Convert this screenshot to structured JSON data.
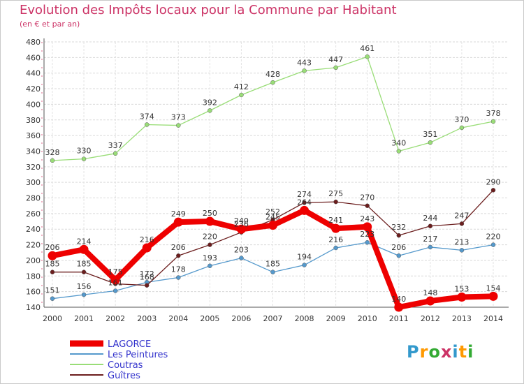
{
  "title": "Evolution des Impôts locaux pour la Commune par Habitant",
  "subtitle": "(en € et par an)",
  "logo": {
    "text": "Proxiti",
    "colors": [
      "#3399cc",
      "#ff9900",
      "#33aa33",
      "#cc3366",
      "#3399cc",
      "#ff9900",
      "#33aa33"
    ]
  },
  "chart_data": {
    "type": "line",
    "x": [
      "2000",
      "2001",
      "2002",
      "2003",
      "2004",
      "2005",
      "2006",
      "2007",
      "2008",
      "2009",
      "2010",
      "2011",
      "2012",
      "2013",
      "2014"
    ],
    "ylim": [
      140,
      480
    ],
    "yticks": [
      140,
      160,
      180,
      200,
      220,
      240,
      260,
      280,
      300,
      320,
      340,
      360,
      380,
      400,
      420,
      440,
      460,
      480
    ],
    "grid": true,
    "legend": "bottom-left",
    "series": [
      {
        "name": "LAGORCE",
        "color": "#ee0000",
        "values": [
          206,
          214,
          175,
          216,
          249,
          250,
          240,
          245,
          264,
          241,
          243,
          140,
          148,
          153,
          154
        ]
      },
      {
        "name": "Les Peintures",
        "color": "#5599cc",
        "values": [
          151,
          156,
          161,
          172,
          178,
          193,
          203,
          185,
          194,
          216,
          223,
          206,
          217,
          213,
          220
        ]
      },
      {
        "name": "Coutras",
        "color": "#99dd77",
        "values": [
          328,
          330,
          337,
          374,
          373,
          392,
          412,
          428,
          443,
          447,
          461,
          340,
          351,
          370,
          378
        ]
      },
      {
        "name": "Guîtres",
        "color": "#6b1d1d",
        "values": [
          185,
          185,
          170,
          168,
          206,
          220,
          236,
          252,
          274,
          275,
          270,
          232,
          244,
          247,
          290
        ]
      }
    ],
    "labels": {
      "LAGORCE": [
        "206",
        "214",
        "175",
        "216",
        "249",
        "250",
        "240",
        "245",
        "264",
        "241",
        "243",
        "140",
        "148",
        "153",
        "154"
      ],
      "Les Peintures": [
        "151",
        "156",
        "161",
        "172",
        "178",
        "193",
        "203",
        "185",
        "194",
        "216",
        "223",
        "206",
        "217",
        "213",
        "220"
      ],
      "Coutras": [
        "328",
        "330",
        "337",
        "374",
        "373",
        "392",
        "412",
        "428",
        "443",
        "447",
        "461",
        "340",
        "351",
        "370",
        "378"
      ],
      "Guîtres": [
        "185",
        "185",
        "",
        "168",
        "206",
        "220",
        "236",
        "252",
        "274",
        "275",
        "270",
        "232",
        "244",
        "247",
        "290"
      ]
    }
  }
}
